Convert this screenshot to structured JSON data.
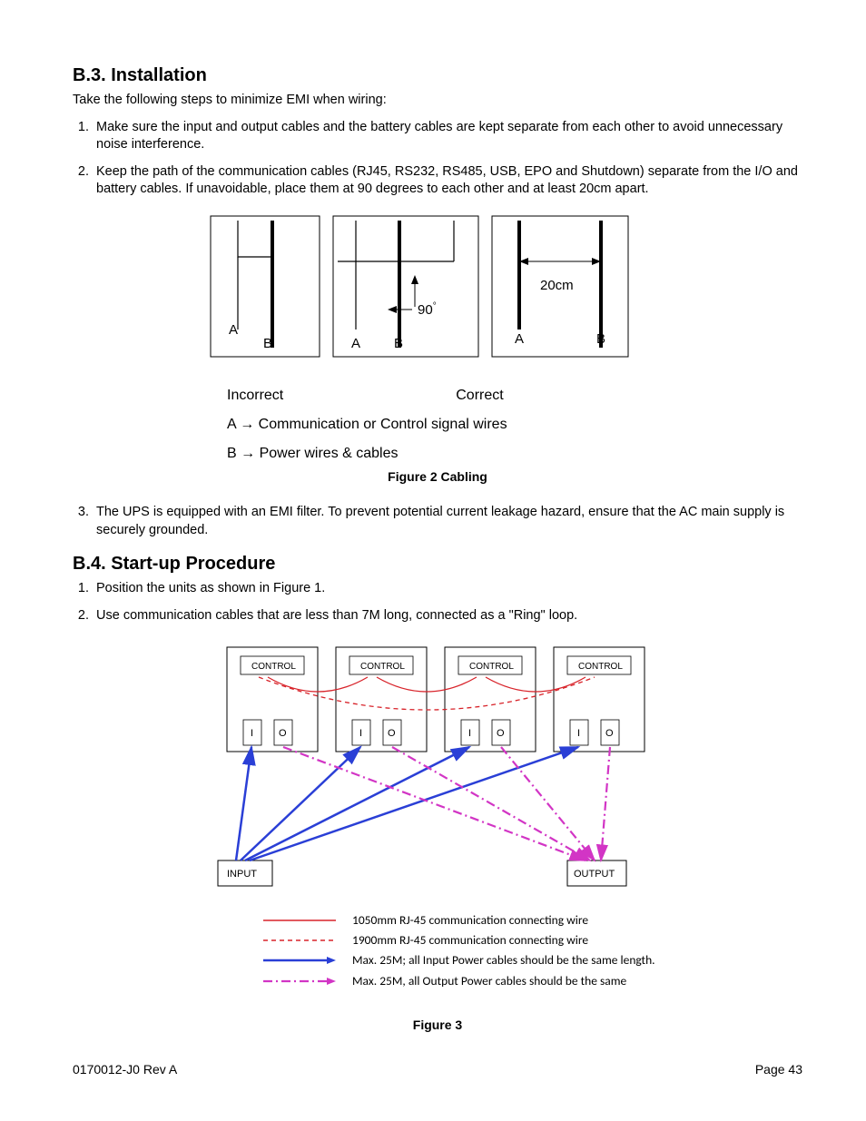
{
  "section_b3": {
    "heading": "B.3.   Installation",
    "intro": "Take the following steps to minimize EMI when wiring:",
    "items": [
      "Make sure the input and output cables and the battery cables are kept separate from each other to avoid unnecessary noise interference.",
      "Keep the path of the communication cables (RJ45, RS232, RS485, USB, EPO and Shutdown) separate from the I/O and battery cables. If unavoidable, place them at 90 degrees to each other and at least 20cm apart."
    ],
    "item3": "The UPS is equipped with an EMI filter. To prevent potential current leakage hazard, ensure that the AC main supply is securely grounded."
  },
  "figure2": {
    "incorrect_label": "Incorrect",
    "correct_label": "Correct",
    "legend_a": "A → Communication or Control signal wires",
    "legend_b": "B → Power wires & cables",
    "caption": "Figure 2 Cabling",
    "a": "A",
    "b": "B",
    "ninety": "90",
    "twentycm": "20cm",
    "panel_border": "#000000",
    "line_color": "#000000",
    "stroke_thin": 1,
    "stroke_thick": 3
  },
  "section_b4": {
    "heading": "B.4.   Start-up Procedure",
    "items": [
      "Position the units as shown in Figure 1.",
      "Use communication cables that are less than 7M long, connected as a \"Ring\" loop."
    ]
  },
  "figure3": {
    "control": "CONTROL",
    "i": "I",
    "o": "O",
    "input": "INPUT",
    "output": "OUTPUT",
    "caption": "Figure 3",
    "colors": {
      "solid_red": "#d8232a",
      "dash_red": "#d8232a",
      "blue": "#2a3fd6",
      "magenta": "#d235c5",
      "border": "#000000"
    },
    "legend": [
      {
        "text": "1050mm RJ-45 communication connecting wire"
      },
      {
        "text": "1900mm RJ-45 communication connecting wire"
      },
      {
        "text": "Max. 25M; all Input Power cables should be the same length."
      },
      {
        "text": "Max. 25M, all Output Power cables should be the same"
      }
    ]
  },
  "footer": {
    "left": "0170012-J0   Rev A",
    "right": "Page 43"
  }
}
